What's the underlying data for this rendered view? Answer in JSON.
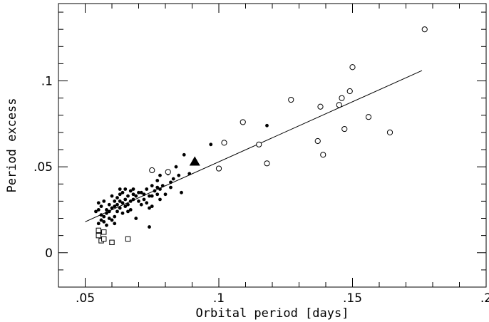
{
  "chart_data": {
    "type": "scatter",
    "title": "",
    "xlabel": "Orbital period [days]",
    "ylabel": "Period excess",
    "xlim": [
      0.04,
      0.2
    ],
    "ylim": [
      -0.02,
      0.145
    ],
    "x_ticks": [
      {
        "value": 0.05,
        "label": ".05"
      },
      {
        "value": 0.1,
        "label": ".1"
      },
      {
        "value": 0.15,
        "label": ".15"
      },
      {
        "value": 0.2,
        "label": ".2"
      }
    ],
    "y_ticks": [
      {
        "value": 0.0,
        "label": "0"
      },
      {
        "value": 0.05,
        "label": ".05"
      },
      {
        "value": 0.1,
        "label": ".1"
      }
    ],
    "fit_line": {
      "x": [
        0.05,
        0.176
      ],
      "y": [
        0.018,
        0.106
      ]
    },
    "series": [
      {
        "marker": "filled-circle",
        "points": [
          [
            0.054,
            0.024
          ],
          [
            0.055,
            0.025
          ],
          [
            0.055,
            0.029
          ],
          [
            0.055,
            0.017
          ],
          [
            0.056,
            0.022
          ],
          [
            0.056,
            0.027
          ],
          [
            0.056,
            0.019
          ],
          [
            0.057,
            0.03
          ],
          [
            0.057,
            0.021
          ],
          [
            0.057,
            0.018
          ],
          [
            0.058,
            0.025
          ],
          [
            0.058,
            0.023
          ],
          [
            0.058,
            0.016
          ],
          [
            0.059,
            0.028
          ],
          [
            0.059,
            0.02
          ],
          [
            0.059,
            0.024
          ],
          [
            0.06,
            0.033
          ],
          [
            0.06,
            0.026
          ],
          [
            0.06,
            0.019
          ],
          [
            0.061,
            0.03
          ],
          [
            0.061,
            0.027
          ],
          [
            0.061,
            0.021
          ],
          [
            0.061,
            0.017
          ],
          [
            0.062,
            0.032
          ],
          [
            0.062,
            0.024
          ],
          [
            0.062,
            0.028
          ],
          [
            0.063,
            0.034
          ],
          [
            0.063,
            0.03
          ],
          [
            0.063,
            0.026
          ],
          [
            0.063,
            0.037
          ],
          [
            0.064,
            0.029
          ],
          [
            0.064,
            0.023
          ],
          [
            0.064,
            0.035
          ],
          [
            0.065,
            0.031
          ],
          [
            0.065,
            0.027
          ],
          [
            0.065,
            0.037
          ],
          [
            0.066,
            0.033
          ],
          [
            0.066,
            0.024
          ],
          [
            0.066,
            0.028
          ],
          [
            0.067,
            0.03
          ],
          [
            0.067,
            0.036
          ],
          [
            0.067,
            0.025
          ],
          [
            0.068,
            0.031
          ],
          [
            0.068,
            0.037
          ],
          [
            0.068,
            0.034
          ],
          [
            0.069,
            0.02
          ],
          [
            0.069,
            0.033
          ],
          [
            0.07,
            0.035
          ],
          [
            0.07,
            0.03
          ],
          [
            0.071,
            0.028
          ],
          [
            0.071,
            0.035
          ],
          [
            0.072,
            0.031
          ],
          [
            0.072,
            0.034
          ],
          [
            0.073,
            0.029
          ],
          [
            0.073,
            0.037
          ],
          [
            0.074,
            0.015
          ],
          [
            0.074,
            0.026
          ],
          [
            0.074,
            0.033
          ],
          [
            0.075,
            0.039
          ],
          [
            0.075,
            0.033
          ],
          [
            0.075,
            0.027
          ],
          [
            0.076,
            0.036
          ],
          [
            0.077,
            0.034
          ],
          [
            0.077,
            0.038
          ],
          [
            0.077,
            0.042
          ],
          [
            0.078,
            0.031
          ],
          [
            0.078,
            0.045
          ],
          [
            0.078,
            0.037
          ],
          [
            0.079,
            0.039
          ],
          [
            0.08,
            0.034
          ],
          [
            0.081,
            0.046
          ],
          [
            0.082,
            0.038
          ],
          [
            0.082,
            0.041
          ],
          [
            0.083,
            0.043
          ],
          [
            0.084,
            0.05
          ],
          [
            0.085,
            0.045
          ],
          [
            0.086,
            0.035
          ],
          [
            0.087,
            0.057
          ],
          [
            0.089,
            0.046
          ],
          [
            0.097,
            0.063
          ],
          [
            0.118,
            0.074
          ]
        ]
      },
      {
        "marker": "open-circle",
        "points": [
          [
            0.075,
            0.048
          ],
          [
            0.081,
            0.047
          ],
          [
            0.1,
            0.049
          ],
          [
            0.102,
            0.064
          ],
          [
            0.109,
            0.076
          ],
          [
            0.115,
            0.063
          ],
          [
            0.118,
            0.052
          ],
          [
            0.127,
            0.089
          ],
          [
            0.137,
            0.065
          ],
          [
            0.138,
            0.085
          ],
          [
            0.139,
            0.057
          ],
          [
            0.145,
            0.086
          ],
          [
            0.146,
            0.09
          ],
          [
            0.147,
            0.072
          ],
          [
            0.149,
            0.094
          ],
          [
            0.15,
            0.108
          ],
          [
            0.156,
            0.079
          ],
          [
            0.164,
            0.07
          ],
          [
            0.177,
            0.13
          ]
        ]
      },
      {
        "marker": "open-square",
        "points": [
          [
            0.055,
            0.013
          ],
          [
            0.055,
            0.01
          ],
          [
            0.056,
            0.007
          ],
          [
            0.057,
            0.012
          ],
          [
            0.057,
            0.008
          ],
          [
            0.06,
            0.006
          ],
          [
            0.066,
            0.008
          ]
        ]
      },
      {
        "marker": "filled-triangle",
        "points": [
          [
            0.091,
            0.053
          ]
        ]
      }
    ]
  }
}
